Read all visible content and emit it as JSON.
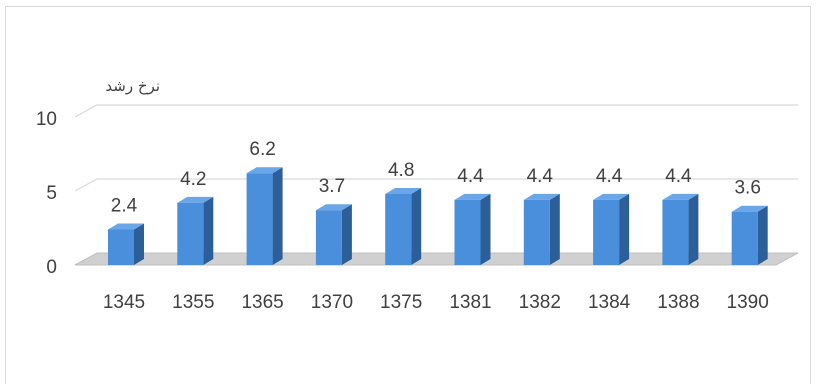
{
  "chart_data": {
    "type": "bar",
    "ylabel": "نرخ رشد",
    "categories": [
      "1345",
      "1355",
      "1365",
      "1370",
      "1375",
      "1381",
      "1382",
      "1384",
      "1388",
      "1390"
    ],
    "values": [
      2.4,
      4.2,
      6.2,
      3.7,
      4.8,
      4.4,
      4.4,
      4.4,
      4.4,
      3.6
    ],
    "value_labels": [
      "2.4",
      "4.2",
      "6.2",
      "3.7",
      "4.8",
      "4.4",
      "4.4",
      "4.4",
      "4.4",
      "3.6"
    ],
    "yticks": [
      "0",
      "5",
      "10"
    ],
    "ylim": [
      0,
      10
    ],
    "grid": true,
    "bar_style": "3d",
    "colors": {
      "bar_front": "#4a8fdb",
      "bar_side": "#2c5f9a",
      "bar_top": "#6aa6e8",
      "gridline": "#d9d9d9",
      "floor": "#d0d0d0"
    }
  }
}
